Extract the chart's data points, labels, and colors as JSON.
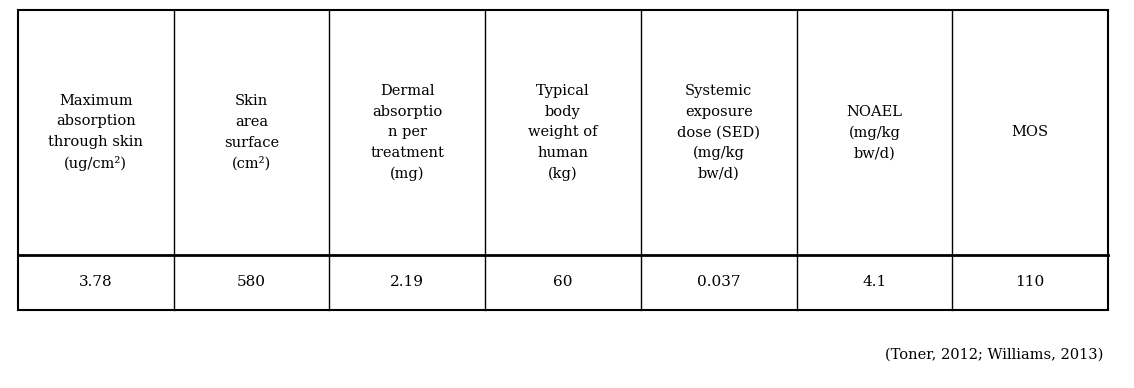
{
  "headers": [
    "Maximum\nabsorption\nthrough skin\n(ug/cm²)",
    "Skin\narea\nsurface\n(cm²)",
    "Dermal\nabsorptio\nn per\ntreatment\n(mg)",
    "Typical\nbody\nweight of\nhuman\n(kg)",
    "Systemic\nexposure\ndose (SED)\n(mg/kg\nbw/d)",
    "NOAEL\n(mg/kg\nbw/d)",
    "MOS"
  ],
  "values": [
    "3.78",
    "580",
    "2.19",
    "60",
    "0.037",
    "4.1",
    "110"
  ],
  "caption": "(Toner, 2012; Williams, 2013)",
  "bg_color": "#ffffff",
  "text_color": "#000000",
  "border_color": "#000000",
  "header_fontsize": 10.5,
  "value_fontsize": 11,
  "caption_fontsize": 10.5
}
